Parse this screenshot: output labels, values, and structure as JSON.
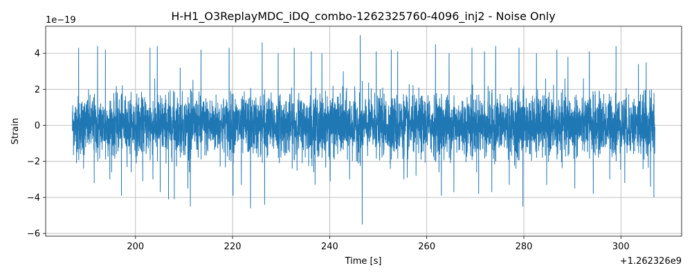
{
  "chart_data": {
    "type": "line",
    "title": "H-H1_O3ReplayMDC_iDQ_combo-1262325760-4096_inj2 - Noise Only",
    "xlabel": "Time [s]",
    "ylabel": "Strain",
    "x_offset_label": "+1.262326e9",
    "y_scale_label": "1e−19",
    "xlim": [
      181.5,
      312.5
    ],
    "ylim": [
      -6.15,
      5.5
    ],
    "x_ticks": [
      200,
      220,
      240,
      260,
      280,
      300
    ],
    "x_tick_labels": [
      "200",
      "220",
      "240",
      "260",
      "280",
      "300"
    ],
    "y_ticks": [
      -6,
      -4,
      -2,
      0,
      2,
      4
    ],
    "y_tick_labels": [
      "−6",
      "−4",
      "−2",
      "0",
      "2",
      "4"
    ],
    "grid": true,
    "series": [
      {
        "color": "#1f77b4",
        "x_range": [
          187.0,
          307.0
        ],
        "noise_sigma": 0.8,
        "extremes": [
          {
            "x": 188.3,
            "y": 4.3
          },
          {
            "x": 189.3,
            "y": -2.4
          },
          {
            "x": 191.5,
            "y": -3.2
          },
          {
            "x": 192.2,
            "y": 4.4
          },
          {
            "x": 193.8,
            "y": 4.2
          },
          {
            "x": 194.7,
            "y": -3.0
          },
          {
            "x": 197.1,
            "y": -3.9
          },
          {
            "x": 201.5,
            "y": -3.1
          },
          {
            "x": 203.0,
            "y": 4.3
          },
          {
            "x": 203.6,
            "y": -3.0
          },
          {
            "x": 204.5,
            "y": 4.4
          },
          {
            "x": 205.1,
            "y": -3.7
          },
          {
            "x": 206.8,
            "y": -4.1
          },
          {
            "x": 208.0,
            "y": -4.1
          },
          {
            "x": 209.2,
            "y": 3.2
          },
          {
            "x": 210.8,
            "y": -3.5
          },
          {
            "x": 211.3,
            "y": -4.5
          },
          {
            "x": 213.5,
            "y": 4.2
          },
          {
            "x": 219.3,
            "y": 4.3
          },
          {
            "x": 220.1,
            "y": -3.9
          },
          {
            "x": 221.8,
            "y": -3.3
          },
          {
            "x": 223.7,
            "y": -4.6
          },
          {
            "x": 226.1,
            "y": 4.6
          },
          {
            "x": 226.6,
            "y": -4.4
          },
          {
            "x": 229.4,
            "y": 4.0
          },
          {
            "x": 232.7,
            "y": 4.3
          },
          {
            "x": 236.2,
            "y": 4.1
          },
          {
            "x": 237.0,
            "y": -3.3
          },
          {
            "x": 238.4,
            "y": 4.0
          },
          {
            "x": 240.1,
            "y": -3.1
          },
          {
            "x": 242.8,
            "y": 3.0
          },
          {
            "x": 244.1,
            "y": -3.0
          },
          {
            "x": 246.3,
            "y": 5.0
          },
          {
            "x": 246.7,
            "y": -5.5
          },
          {
            "x": 249.6,
            "y": 4.1
          },
          {
            "x": 252.7,
            "y": 4.2
          },
          {
            "x": 254.0,
            "y": 4.1
          },
          {
            "x": 255.3,
            "y": -3.0
          },
          {
            "x": 256.0,
            "y": -2.9
          },
          {
            "x": 257.8,
            "y": -2.8
          },
          {
            "x": 261.8,
            "y": 4.5
          },
          {
            "x": 263.0,
            "y": -3.9
          },
          {
            "x": 264.6,
            "y": 4.0
          },
          {
            "x": 265.6,
            "y": -3.7
          },
          {
            "x": 269.3,
            "y": 4.3
          },
          {
            "x": 270.7,
            "y": -3.8
          },
          {
            "x": 271.9,
            "y": 4.1
          },
          {
            "x": 273.4,
            "y": -3.7
          },
          {
            "x": 274.2,
            "y": 4.4
          },
          {
            "x": 277.0,
            "y": -3.3
          },
          {
            "x": 279.0,
            "y": 4.3
          },
          {
            "x": 279.8,
            "y": -4.5
          },
          {
            "x": 282.6,
            "y": 4.0
          },
          {
            "x": 284.7,
            "y": -3.3
          },
          {
            "x": 286.8,
            "y": 4.2
          },
          {
            "x": 289.1,
            "y": 3.8
          },
          {
            "x": 290.5,
            "y": -3.5
          },
          {
            "x": 293.5,
            "y": 4.1
          },
          {
            "x": 294.3,
            "y": -3.8
          },
          {
            "x": 297.7,
            "y": -3.0
          },
          {
            "x": 299.0,
            "y": 4.4
          },
          {
            "x": 300.8,
            "y": -3.2
          },
          {
            "x": 303.6,
            "y": 3.4
          },
          {
            "x": 305.2,
            "y": 3.5
          },
          {
            "x": 306.1,
            "y": -3.4
          },
          {
            "x": 306.8,
            "y": -4.0
          }
        ]
      }
    ]
  }
}
